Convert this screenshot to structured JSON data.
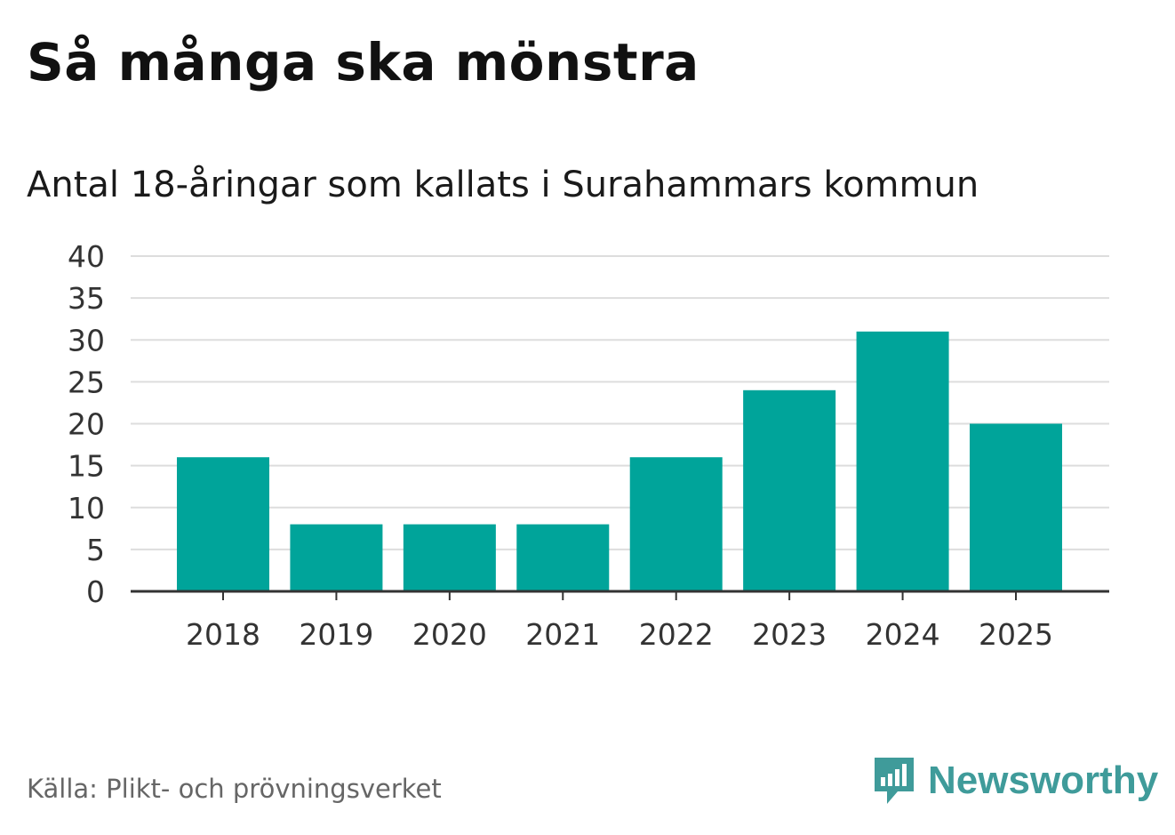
{
  "header": {
    "title": "Så många ska mönstra",
    "subtitle": "Antal 18-åringar som kallats i Surahammars kommun"
  },
  "footer": {
    "source": "Källa: Plikt- och prövningsverket",
    "brand_name": "Newsworthy",
    "brand_icon": "chat-bubble-bar-chart-icon"
  },
  "colors": {
    "bar": "#00a49a",
    "gridline": "#dddddd",
    "axis": "#333333",
    "brand": "#3f9b9a"
  },
  "chart_data": {
    "type": "bar",
    "title": "Så många ska mönstra",
    "subtitle": "Antal 18-åringar som kallats i Surahammars kommun",
    "categories": [
      "2018",
      "2019",
      "2020",
      "2021",
      "2022",
      "2023",
      "2024",
      "2025"
    ],
    "values": [
      16,
      8,
      8,
      8,
      16,
      24,
      31,
      20
    ],
    "ylim": [
      0,
      40
    ],
    "yticks": [
      0,
      5,
      10,
      15,
      20,
      25,
      30,
      35,
      40
    ],
    "xlabel": "",
    "ylabel": "",
    "grid": true,
    "legend": "none"
  }
}
